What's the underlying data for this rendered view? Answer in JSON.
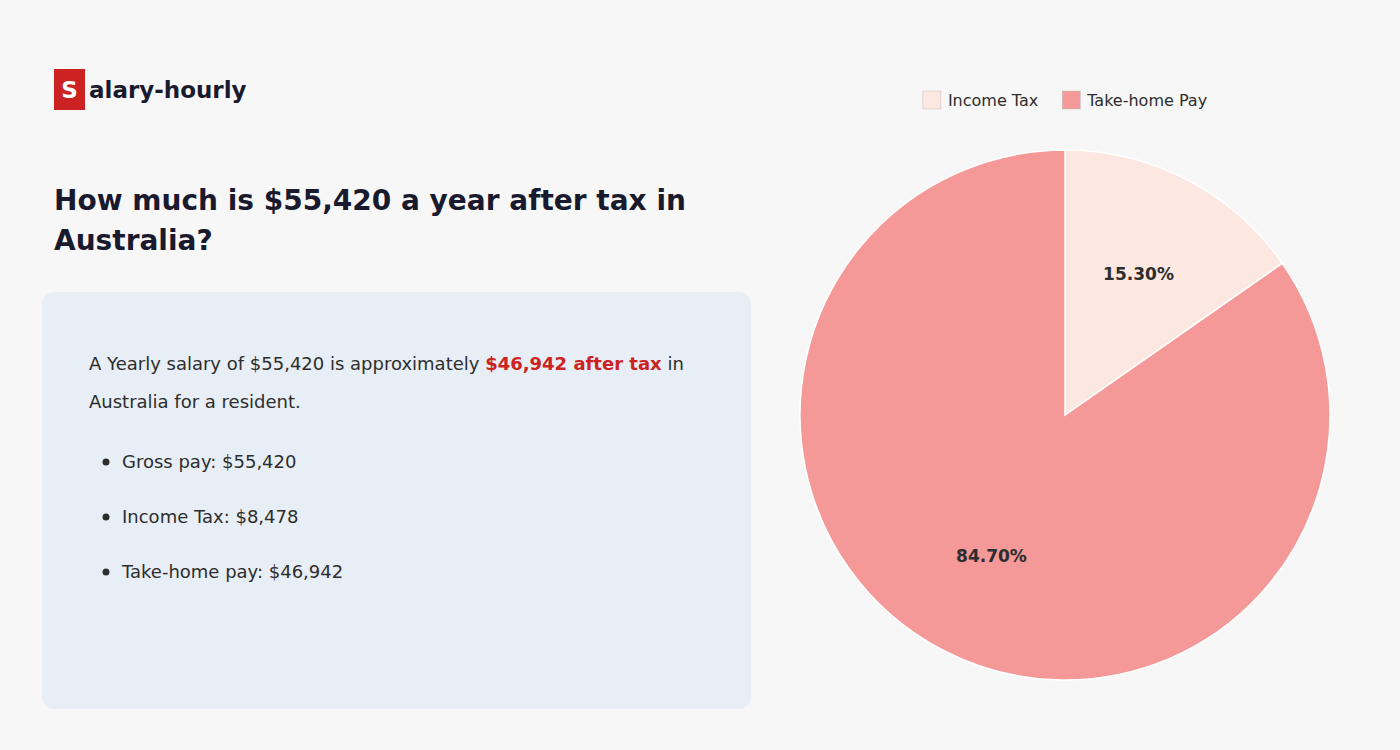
{
  "chart_data": {
    "type": "pie",
    "title": "How much is $55,420 a year after tax in\nAustralia?",
    "annotations": [
      "S",
      "alary-hourly",
      "A Yearly salary of $55,420 is approximately ",
      "$46,942 after tax",
      " in",
      "Australia for a resident.",
      "Gross pay: $55,420",
      "Income Tax: $8,478",
      "Take-home pay: $46,942"
    ],
    "categories": [
      "Income Tax",
      "Take-home Pay"
    ],
    "values": [
      15.3,
      84.7
    ],
    "value_labels": [
      "15.30%",
      "84.70%"
    ],
    "colors": [
      "#fce8e0",
      "#f49898"
    ],
    "data_labels": true,
    "legend": "top"
  }
}
